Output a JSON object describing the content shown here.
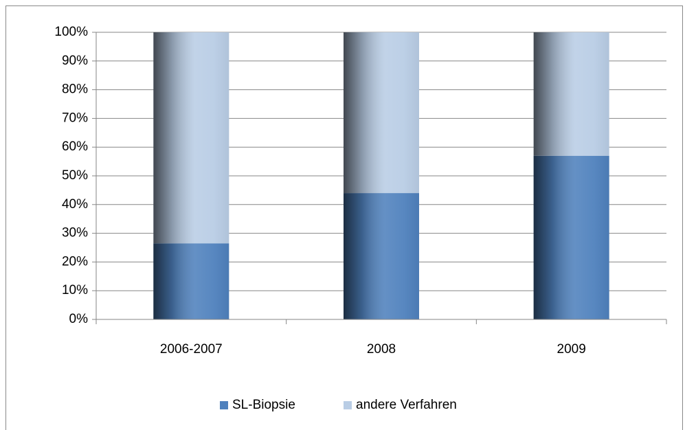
{
  "chart_data": {
    "type": "stacked_bar",
    "categories": [
      "2006-2007",
      "2008",
      "2009"
    ],
    "series": [
      {
        "name": "SL-Biopsie",
        "color": "#4f81bd",
        "values": [
          26.5,
          44,
          57
        ]
      },
      {
        "name": "andere Verfahren",
        "color": "#b9cde5",
        "values": [
          73.5,
          56,
          43
        ]
      }
    ],
    "ylim": [
      0,
      100
    ],
    "yticks": [
      {
        "value": 0,
        "label": "0%"
      },
      {
        "value": 10,
        "label": "10%"
      },
      {
        "value": 20,
        "label": "20%"
      },
      {
        "value": 30,
        "label": "30%"
      },
      {
        "value": 40,
        "label": "40%"
      },
      {
        "value": 50,
        "label": "50%"
      },
      {
        "value": 60,
        "label": "60%"
      },
      {
        "value": 70,
        "label": "70%"
      },
      {
        "value": 80,
        "label": "80%"
      },
      {
        "value": 90,
        "label": "90%"
      },
      {
        "value": 100,
        "label": "100%"
      }
    ],
    "grid": true,
    "legend": "bottom"
  }
}
